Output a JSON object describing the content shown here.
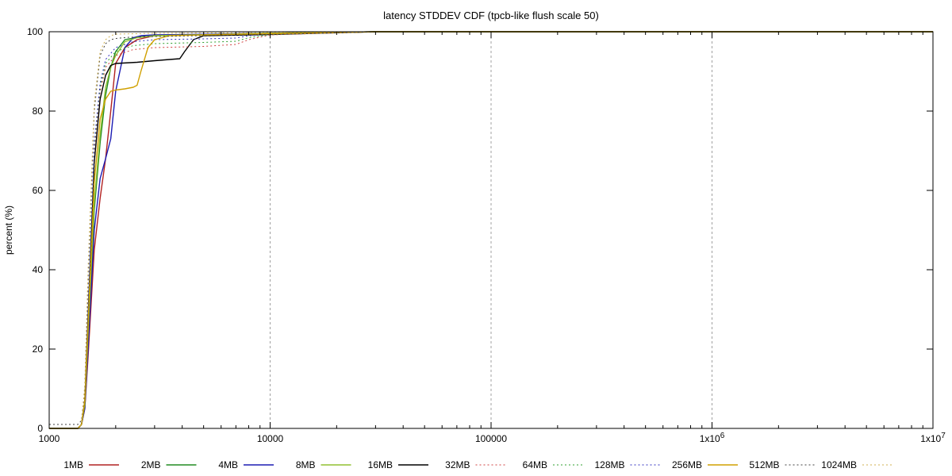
{
  "chart_data": {
    "type": "line",
    "title": "latency STDDEV CDF (tpcb-like flush scale 50)",
    "xlabel": "",
    "ylabel": "percent (%)",
    "xscale": "log",
    "xlim": [
      1000,
      10000000
    ],
    "ylim": [
      0,
      100
    ],
    "grid": "x-major",
    "legend": "bottom",
    "x_ticks": [
      {
        "value": 1000,
        "label": "1000"
      },
      {
        "value": 10000,
        "label": "10000"
      },
      {
        "value": 100000,
        "label": "100000"
      },
      {
        "value": 1000000,
        "label": "1x10^6"
      },
      {
        "value": 10000000,
        "label": "1x10^7"
      }
    ],
    "y_ticks": [
      0,
      20,
      40,
      60,
      80,
      100
    ],
    "series": [
      {
        "name": "1MB",
        "color": "#b22222",
        "style": "solid",
        "x": [
          1000,
          1350,
          1400,
          1450,
          1500,
          1600,
          1700,
          1800,
          1900,
          2000,
          2200,
          2500,
          3000,
          5000,
          10000,
          30000,
          10000000
        ],
        "y": [
          0,
          0,
          1,
          5,
          18,
          45,
          58,
          68,
          80,
          92,
          96,
          98,
          99,
          99.3,
          99.6,
          100,
          100
        ]
      },
      {
        "name": "2MB",
        "color": "#228b22",
        "style": "solid",
        "x": [
          1000,
          1350,
          1400,
          1450,
          1500,
          1600,
          1700,
          1800,
          1900,
          2000,
          2200,
          2500,
          3000,
          10000,
          30000,
          10000000
        ],
        "y": [
          0,
          0,
          1,
          6,
          22,
          55,
          72,
          84,
          91,
          95,
          98,
          98.6,
          99,
          99.6,
          100,
          100
        ]
      },
      {
        "name": "4MB",
        "color": "#1c1cb4",
        "style": "solid",
        "x": [
          1000,
          1350,
          1400,
          1450,
          1500,
          1600,
          1700,
          1800,
          1900,
          2000,
          2200,
          2400,
          2600,
          3000,
          10000,
          30000,
          10000000
        ],
        "y": [
          0,
          0,
          1,
          5,
          20,
          50,
          63,
          68,
          73,
          85,
          96,
          98.5,
          99,
          99.2,
          99.6,
          100,
          100
        ]
      },
      {
        "name": "8MB",
        "color": "#90c030",
        "style": "solid",
        "x": [
          1000,
          1350,
          1400,
          1450,
          1500,
          1600,
          1700,
          1800,
          1900,
          2000,
          2200,
          2500,
          3000,
          10000,
          30000,
          10000000
        ],
        "y": [
          0,
          0,
          1,
          6,
          24,
          57,
          74,
          86,
          91,
          94,
          97.5,
          98.5,
          99,
          99.6,
          100,
          100
        ]
      },
      {
        "name": "16MB",
        "color": "#000000",
        "style": "solid",
        "x": [
          1000,
          1350,
          1400,
          1450,
          1500,
          1600,
          1700,
          1800,
          1900,
          2000,
          2500,
          3000,
          3500,
          3900,
          4100,
          4500,
          5000,
          10000,
          30000,
          10000000
        ],
        "y": [
          0,
          0,
          1,
          7,
          28,
          67,
          83,
          89,
          91.5,
          92,
          92.3,
          92.7,
          93,
          93.2,
          95,
          98,
          99,
          99.3,
          100,
          100
        ]
      },
      {
        "name": "32MB",
        "color": "#d04040",
        "style": "dotted",
        "x": [
          1000,
          1350,
          1400,
          1450,
          1500,
          1600,
          1700,
          1800,
          2000,
          2400,
          3000,
          5000,
          7000,
          8000,
          10000,
          30000,
          10000000
        ],
        "y": [
          0,
          0,
          1,
          8,
          30,
          70,
          85,
          91,
          94,
          95.5,
          96,
          96.3,
          96.8,
          98,
          99.2,
          100,
          100
        ]
      },
      {
        "name": "64MB",
        "color": "#30a030",
        "style": "dotted",
        "x": [
          1000,
          1350,
          1400,
          1450,
          1500,
          1600,
          1700,
          1800,
          2000,
          2400,
          3000,
          5000,
          7000,
          8000,
          10000,
          30000,
          10000000
        ],
        "y": [
          0,
          0,
          1,
          8,
          31,
          71,
          86,
          92,
          95,
          96.5,
          97,
          97.3,
          97.6,
          98.5,
          99.3,
          100,
          100
        ]
      },
      {
        "name": "128MB",
        "color": "#3030c0",
        "style": "dotted",
        "x": [
          1000,
          1350,
          1400,
          1450,
          1500,
          1600,
          1700,
          1800,
          2000,
          2400,
          3000,
          5000,
          7000,
          8000,
          10000,
          30000,
          10000000
        ],
        "y": [
          0,
          0,
          1,
          8,
          31,
          72,
          87,
          93,
          96,
          97.5,
          98,
          98.2,
          98.4,
          99,
          99.4,
          100,
          100
        ]
      },
      {
        "name": "256MB",
        "color": "#d0a000",
        "style": "solid",
        "x": [
          1000,
          1350,
          1400,
          1450,
          1500,
          1600,
          1700,
          1800,
          1900,
          2000,
          2200,
          2400,
          2500,
          2600,
          2800,
          3000,
          3500,
          5000,
          10000,
          30000,
          10000000
        ],
        "y": [
          0,
          0,
          1,
          7,
          26,
          62,
          78,
          83,
          85,
          85.3,
          85.6,
          86,
          86.5,
          90,
          96,
          98,
          99,
          99.2,
          99.5,
          100,
          100
        ]
      },
      {
        "name": "512MB",
        "color": "#404040",
        "style": "dotted",
        "x": [
          1000,
          1350,
          1400,
          1450,
          1500,
          1600,
          1700,
          1800,
          1900,
          2000,
          2300,
          3000,
          10000,
          30000,
          10000000
        ],
        "y": [
          1,
          1,
          2,
          10,
          38,
          80,
          94,
          97,
          98,
          98.3,
          98.6,
          98.8,
          99.3,
          100,
          100
        ]
      },
      {
        "name": "1024MB",
        "color": "#d0b050",
        "style": "dotted",
        "x": [
          1000,
          1350,
          1400,
          1450,
          1500,
          1600,
          1700,
          1800,
          1900,
          2000,
          3000,
          10000,
          30000,
          10000000
        ],
        "y": [
          0,
          0,
          1,
          11,
          40,
          82,
          95,
          98,
          99,
          99.4,
          99.6,
          99.8,
          100,
          100
        ]
      }
    ]
  }
}
